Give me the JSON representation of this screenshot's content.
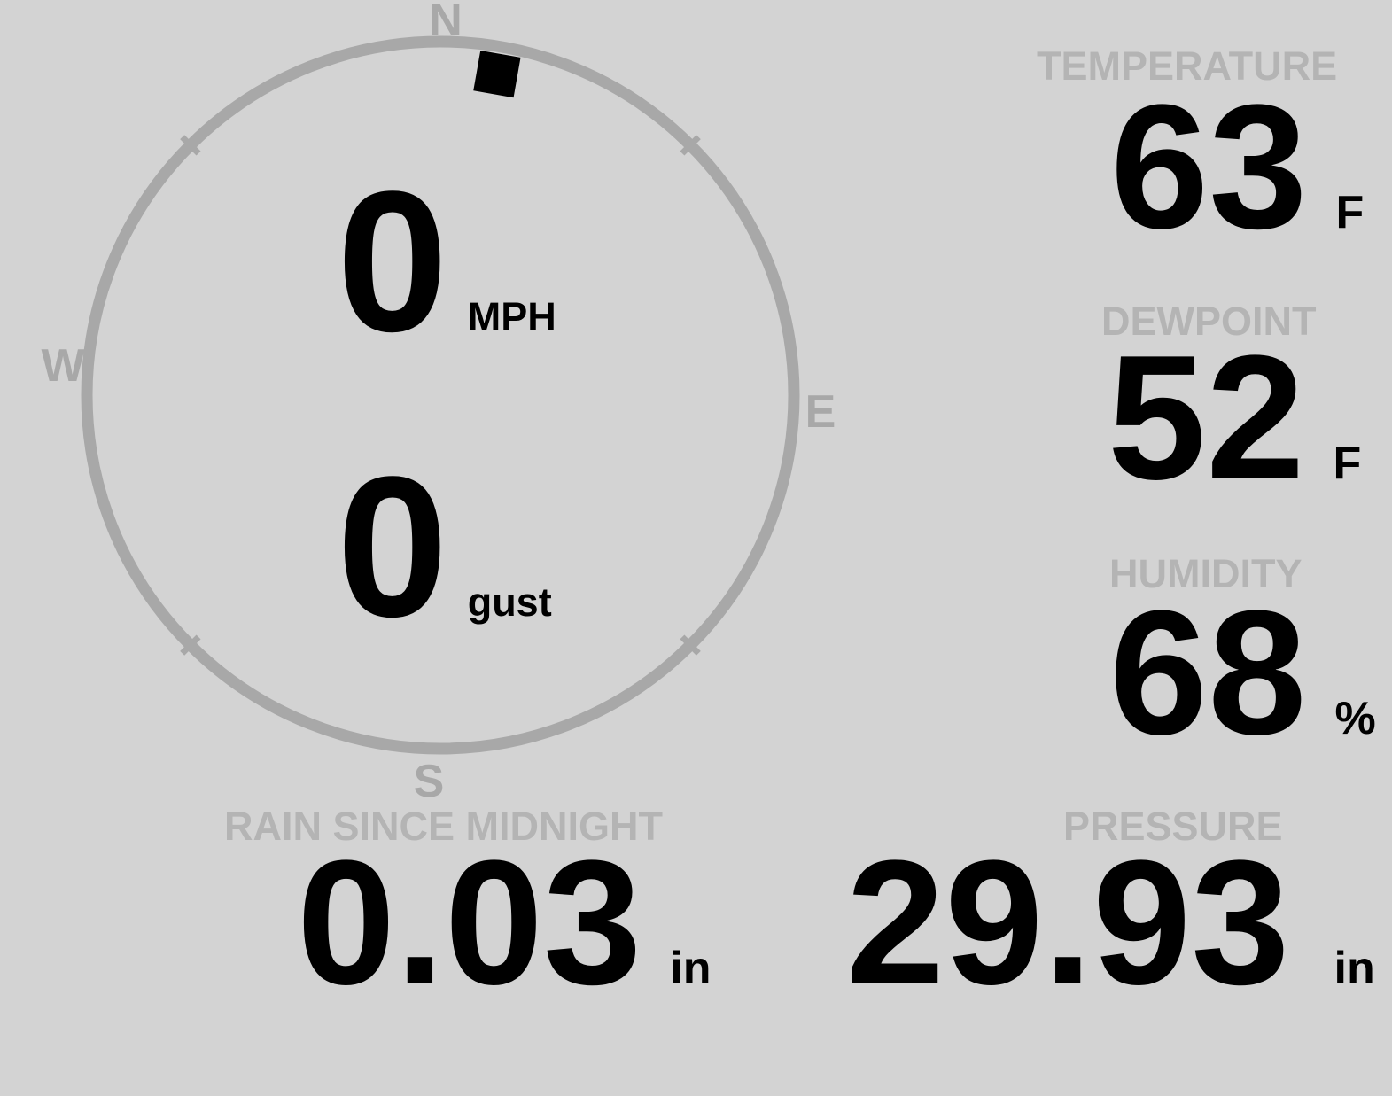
{
  "colors": {
    "background": "#d3d3d3",
    "compass": "#a8a8a8",
    "metric_label": "#b4b4b4",
    "value": "#000000"
  },
  "wind": {
    "direction_deg": 10,
    "compass": {
      "north": "N",
      "east": "E",
      "south": "S",
      "west": "W"
    },
    "speed": {
      "value": "0",
      "unit": "MPH"
    },
    "gust": {
      "value": "0",
      "unit": "gust"
    }
  },
  "metrics": {
    "temperature": {
      "label": "TEMPERATURE",
      "value": "63",
      "unit": "F"
    },
    "dewpoint": {
      "label": "DEWPOINT",
      "value": "52",
      "unit": "F"
    },
    "humidity": {
      "label": "HUMIDITY",
      "value": "68",
      "unit": "%"
    },
    "rain_since_midnight": {
      "label": "RAIN SINCE MIDNIGHT",
      "value": "0.03",
      "unit": "in"
    },
    "pressure": {
      "label": "PRESSURE",
      "value": "29.93",
      "unit": "in"
    }
  }
}
